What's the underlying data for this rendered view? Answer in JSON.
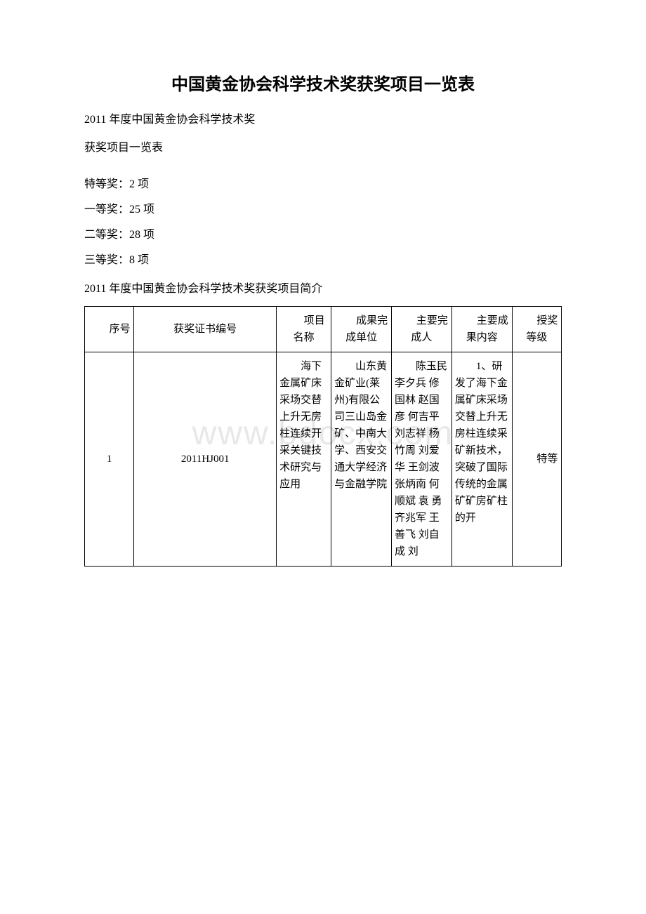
{
  "watermark": "www.bdocx.com",
  "title": "中国黄金协会科学技术奖获奖项目一览表",
  "intro_line1": "2011 年度中国黄金协会科学技术奖",
  "intro_line2": "获奖项目一览表",
  "awards": {
    "special": "特等奖：2 项",
    "first": "一等奖：25 项",
    "second": "二等奖：28 项",
    "third": "三等奖：8 项"
  },
  "section_title": "2011 年度中国黄金协会科学技术奖获奖项目简介",
  "table": {
    "headers": {
      "seq": "序号",
      "cert": "获奖证书编号",
      "proj": "项目名称",
      "unit": "成果完成单位",
      "person": "主要完成人",
      "content": "主要成果内容",
      "level": "授奖等级"
    },
    "rows": [
      {
        "seq": "1",
        "cert": "2011HJ001",
        "proj": "海下金属矿床采场交替上升无房柱连续开采关键技术研究与应用",
        "unit": "山东黄金矿业(莱州)有限公司三山岛金矿、中南大学、西安交通大学经济与金融学院",
        "person": "陈玉民 李夕兵 修国林 赵国彦 何吉平 刘志祥 杨竹周 刘爱华 王剑波 张炳南 何顺斌 袁 勇 齐兆军 王善飞 刘自成 刘",
        "content": "1、研发了海下金属矿床采场交替上升无房柱连续采矿新技术，突破了国际传统的金属矿矿房矿柱的开",
        "level": "特等"
      }
    ]
  }
}
